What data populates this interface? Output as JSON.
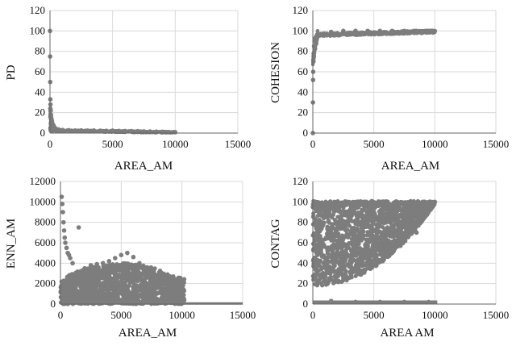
{
  "chart_data": [
    {
      "type": "scatter",
      "xlabel": "AREA_AM",
      "ylabel": "PD",
      "xlim": [
        0,
        15000
      ],
      "ylim": [
        0,
        120
      ],
      "xticks": [
        0,
        5000,
        10000,
        15000
      ],
      "yticks": [
        0,
        20,
        40,
        60,
        80,
        100,
        120
      ],
      "grid": true,
      "color": "#7d7d7d",
      "series": [
        {
          "x": [
            0,
            10,
            20,
            30,
            40,
            60,
            80,
            120,
            160,
            200,
            300,
            400,
            500,
            700,
            1000,
            1500,
            2000,
            2500,
            3000,
            3500,
            4000,
            4500,
            5000,
            5500,
            6000,
            6500,
            7000,
            7500,
            8000,
            8500,
            9000,
            9500,
            10000,
            30,
            80,
            150,
            250
          ],
          "y": [
            100,
            75,
            50,
            33,
            28,
            22,
            18,
            14,
            11,
            9,
            7,
            5,
            4,
            3.5,
            3,
            2.8,
            2.5,
            2.6,
            2.4,
            2.5,
            2.3,
            2.2,
            2.4,
            2.1,
            2,
            1.9,
            1.8,
            1.6,
            1.5,
            1.4,
            1.2,
            1,
            0.8,
            24,
            16,
            12,
            8
          ]
        }
      ]
    },
    {
      "type": "scatter",
      "xlabel": "AREA_AM",
      "ylabel": "COHESION",
      "xlim": [
        0,
        15000
      ],
      "ylim": [
        0,
        120
      ],
      "xticks": [
        0,
        5000,
        10000,
        15000
      ],
      "yticks": [
        0,
        20,
        40,
        60,
        80,
        100,
        120
      ],
      "grid": true,
      "color": "#7d7d7d",
      "series": [
        {
          "x": [
            0,
            10,
            20,
            30,
            50,
            70,
            100,
            150,
            200,
            300,
            500,
            1000,
            2000,
            3000,
            4000,
            5000,
            6000,
            7000,
            8000,
            9000,
            10000,
            1500,
            2500,
            3500,
            4500,
            5500,
            6500,
            7500,
            8500,
            9500
          ],
          "y": [
            0,
            30,
            52,
            60,
            70,
            78,
            85,
            90,
            93,
            95,
            96,
            97,
            97.5,
            98,
            98,
            98.5,
            98.7,
            99,
            99.2,
            99.5,
            99.8,
            99,
            100,
            100,
            100,
            100,
            100,
            100,
            100,
            100
          ]
        }
      ]
    },
    {
      "type": "scatter",
      "xlabel": "AREA_AM",
      "ylabel": "ENN_AM",
      "xlim": [
        0,
        15000
      ],
      "ylim": [
        0,
        12000
      ],
      "xticks": [
        0,
        5000,
        10000,
        15000
      ],
      "yticks": [
        0,
        2000,
        4000,
        6000,
        8000,
        10000,
        12000
      ],
      "grid": true,
      "color": "#7d7d7d",
      "series": [
        {
          "x": [
            100,
            150,
            250,
            300,
            350,
            400,
            500,
            600,
            800,
            1000,
            1500,
            2000,
            2500,
            3000,
            3500,
            4000,
            4500,
            5000,
            5500,
            6000,
            6500,
            7000,
            7500,
            8000,
            8500,
            9000,
            9500,
            10000,
            200,
            700
          ],
          "y": [
            10500,
            9800,
            8000,
            7200,
            6500,
            6000,
            5500,
            5000,
            4500,
            4000,
            7500,
            3500,
            3800,
            3900,
            4000,
            4200,
            4500,
            4800,
            5000,
            4600,
            4000,
            3500,
            3200,
            2800,
            2500,
            2000,
            1500,
            800,
            9000,
            4800
          ]
        }
      ]
    },
    {
      "type": "scatter",
      "xlabel": "AREA AM",
      "ylabel": "CONTAG",
      "xlim": [
        0,
        15000
      ],
      "ylim": [
        0,
        120
      ],
      "xticks": [
        0,
        5000,
        10000,
        15000
      ],
      "yticks": [
        0,
        20,
        40,
        60,
        80,
        100,
        120
      ],
      "grid": true,
      "color": "#7d7d7d",
      "series": [
        {
          "x": [
            0,
            100,
            200,
            500,
            1000,
            2000,
            3000,
            4000,
            5000,
            6000,
            7000,
            8000,
            9000,
            10000,
            300,
            600,
            2500,
            4500,
            6500,
            8500,
            1500,
            3500,
            5500,
            7500,
            9500
          ],
          "y": [
            95,
            100,
            98,
            90,
            85,
            95,
            99,
            100,
            98,
            97,
            99,
            100,
            100,
            100,
            30,
            25,
            35,
            40,
            50,
            70,
            3,
            2,
            2,
            2,
            2
          ]
        }
      ]
    }
  ]
}
